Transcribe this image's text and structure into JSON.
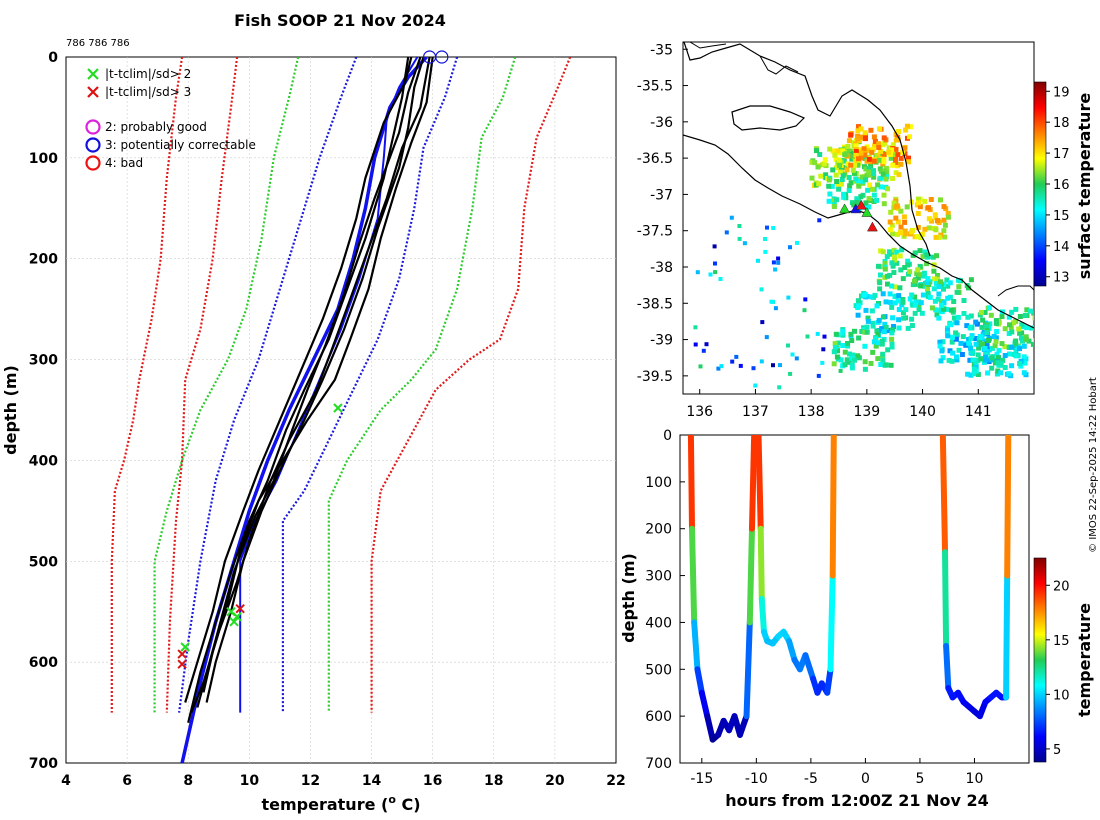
{
  "chart_data": [
    {
      "id": "profiles",
      "type": "line",
      "title": "Fish SOOP 21 Nov 2024",
      "subtitle": "786 786 786",
      "xlabel": "temperature (° C)",
      "xlabel_main": "temperature (",
      "xlabel_sup": "o",
      "xlabel_tail": " C)",
      "ylabel": "depth (m)",
      "xlim": [
        4,
        22
      ],
      "ylim": [
        0,
        700
      ],
      "xticks": [
        "4",
        "6",
        "8",
        "10",
        "12",
        "14",
        "16",
        "18",
        "20",
        "22"
      ],
      "yticks": [
        "0",
        "100",
        "200",
        "300",
        "400",
        "500",
        "600",
        "700"
      ],
      "legend": [
        {
          "marker": "x",
          "color": "#22dd22",
          "label": "|t-tclim|/sd> 2"
        },
        {
          "marker": "x",
          "color": "#dd1111",
          "label": "|t-tclim|/sd> 3"
        },
        {
          "marker": "o",
          "color": "#dd22dd",
          "label": "2: probably good"
        },
        {
          "marker": "o",
          "color": "#1111dd",
          "label": "3: potentially correctable"
        },
        {
          "marker": "o",
          "color": "#ee1111",
          "label": "4: bad"
        }
      ],
      "series": [
        {
          "name": "clim red left",
          "color": "#e01b1b",
          "style": "dotted",
          "x": [
            7.8,
            7.6,
            7.3,
            7.1,
            6.8,
            6.4,
            6.2,
            5.9,
            5.6,
            5.5,
            5.5
          ],
          "y": [
            0,
            40,
            120,
            200,
            260,
            320,
            360,
            400,
            430,
            500,
            650
          ]
        },
        {
          "name": "clim red left 2",
          "color": "#e01b1b",
          "style": "dotted",
          "x": [
            9.6,
            9.4,
            9.1,
            8.8,
            8.4,
            7.9,
            7.8,
            7.6,
            7.4,
            7.3
          ],
          "y": [
            0,
            50,
            120,
            200,
            270,
            320,
            400,
            460,
            560,
            650
          ]
        },
        {
          "name": "clim red right",
          "color": "#e01b1b",
          "style": "dotted",
          "x": [
            20.5,
            20.1,
            19.4,
            19.0,
            18.8,
            18.2,
            17.2,
            16.1,
            15.2,
            14.3,
            14.0,
            14.0
          ],
          "y": [
            0,
            30,
            80,
            150,
            230,
            280,
            300,
            330,
            380,
            430,
            500,
            650
          ]
        },
        {
          "name": "clim green left",
          "color": "#2ccc2c",
          "style": "dotted",
          "x": [
            11.6,
            11.3,
            10.8,
            10.4,
            9.9,
            9.3,
            8.4,
            7.8,
            7.3,
            6.9,
            6.9
          ],
          "y": [
            0,
            40,
            100,
            180,
            250,
            300,
            350,
            400,
            450,
            500,
            650
          ]
        },
        {
          "name": "clim green right",
          "color": "#2ccc2c",
          "style": "dotted",
          "x": [
            18.7,
            18.3,
            17.6,
            17.3,
            16.8,
            16.1,
            15.3,
            14.3,
            13.2,
            12.6,
            12.6
          ],
          "y": [
            0,
            40,
            80,
            150,
            230,
            290,
            320,
            350,
            400,
            440,
            650
          ]
        },
        {
          "name": "clim blue left",
          "color": "#1a1add",
          "style": "dotted",
          "x": [
            13.5,
            13.0,
            12.3,
            11.6,
            11.0,
            10.3,
            9.5,
            8.9,
            8.4,
            8.0,
            7.7
          ],
          "y": [
            0,
            40,
            100,
            170,
            230,
            300,
            360,
            420,
            500,
            580,
            650
          ]
        },
        {
          "name": "clim blue right",
          "color": "#1a1add",
          "style": "dotted",
          "x": [
            16.8,
            16.4,
            15.7,
            15.4,
            14.9,
            14.2,
            13.4,
            12.6,
            11.8,
            11.1,
            11.1
          ],
          "y": [
            0,
            40,
            90,
            150,
            220,
            280,
            330,
            380,
            430,
            460,
            650
          ]
        },
        {
          "name": "mean blue thick",
          "color": "#1111ee",
          "style": "solid",
          "width": 3.5,
          "x": [
            15.8,
            15.2,
            14.6,
            14.1,
            13.8,
            13.4,
            12.9,
            12.1,
            11.3,
            10.6,
            10.0,
            9.5,
            8.9,
            8.4,
            7.8
          ],
          "y": [
            0,
            20,
            50,
            100,
            150,
            200,
            250,
            300,
            350,
            400,
            450,
            500,
            560,
            620,
            700
          ]
        },
        {
          "name": "std blue line",
          "color": "#1111ee",
          "style": "solid",
          "width": 2.0,
          "x": [
            15.5,
            14.9,
            14.5,
            14.4,
            14.2,
            13.6,
            13.0,
            12.3,
            11.6,
            10.9,
            10.2,
            9.7,
            9.7,
            9.7
          ],
          "y": [
            0,
            30,
            60,
            100,
            160,
            220,
            270,
            320,
            370,
            420,
            460,
            500,
            600,
            650
          ]
        },
        {
          "name": "profile 1",
          "color": "#000000",
          "style": "solid",
          "width": 2.2,
          "x": [
            15.2,
            15.0,
            14.7,
            14.4,
            13.8,
            13.2,
            12.6,
            11.8,
            11.2,
            10.6,
            10.0,
            9.4,
            8.9,
            8.4,
            8.0
          ],
          "y": [
            0,
            40,
            80,
            120,
            180,
            230,
            280,
            330,
            370,
            420,
            460,
            510,
            560,
            610,
            660
          ]
        },
        {
          "name": "profile 2",
          "color": "#000000",
          "style": "solid",
          "width": 2.2,
          "x": [
            15.7,
            15.4,
            15.2,
            14.9,
            14.2,
            13.7,
            13.1,
            12.4,
            11.8,
            11.0,
            10.4,
            9.8,
            9.4,
            8.9,
            8.6
          ],
          "y": [
            0,
            30,
            70,
            110,
            170,
            220,
            270,
            320,
            360,
            410,
            450,
            500,
            550,
            600,
            640
          ]
        },
        {
          "name": "profile 3",
          "color": "#000000",
          "style": "solid",
          "width": 2.2,
          "x": [
            15.9,
            15.6,
            15.0,
            14.5,
            13.9,
            13.3,
            12.7,
            12.2,
            11.3,
            10.7,
            10.1,
            9.6,
            9.0,
            8.5,
            8.1
          ],
          "y": [
            0,
            50,
            90,
            140,
            190,
            240,
            290,
            330,
            380,
            420,
            470,
            520,
            570,
            620,
            650
          ]
        },
        {
          "name": "profile 4",
          "color": "#000000",
          "style": "solid",
          "width": 2.2,
          "x": [
            15.3,
            15.1,
            14.4,
            13.8,
            13.5,
            13.0,
            12.4,
            11.7,
            11.0,
            10.3,
            9.8,
            9.2,
            8.8,
            8.3,
            7.9
          ],
          "y": [
            0,
            25,
            65,
            120,
            160,
            210,
            260,
            310,
            360,
            410,
            450,
            500,
            550,
            600,
            640
          ]
        },
        {
          "name": "profile 5",
          "color": "#000000",
          "style": "solid",
          "width": 2.2,
          "x": [
            16.0,
            15.8,
            15.3,
            14.8,
            14.3,
            13.9,
            13.3,
            12.8,
            11.9,
            11.1,
            10.3,
            9.7,
            9.3,
            8.8,
            8.5
          ],
          "y": [
            0,
            45,
            85,
            130,
            180,
            230,
            280,
            320,
            360,
            400,
            440,
            490,
            540,
            590,
            630
          ]
        },
        {
          "name": "profile 6",
          "color": "#000000",
          "style": "solid",
          "width": 2.2,
          "x": [
            15.6,
            15.2,
            14.9,
            14.1,
            13.6,
            13.1,
            12.5,
            11.9,
            11.4,
            10.8,
            10.2,
            9.5,
            9.1,
            8.7,
            8.3
          ],
          "y": [
            0,
            35,
            75,
            140,
            185,
            235,
            285,
            330,
            370,
            420,
            455,
            510,
            555,
            600,
            645
          ]
        }
      ],
      "flags": [
        {
          "marker": "x",
          "color": "#22dd22",
          "x": 9.4,
          "y": 550
        },
        {
          "marker": "x",
          "color": "#22dd22",
          "x": 9.6,
          "y": 555
        },
        {
          "marker": "x",
          "color": "#22dd22",
          "x": 9.5,
          "y": 560
        },
        {
          "marker": "x",
          "color": "#22dd22",
          "x": 7.9,
          "y": 585
        },
        {
          "marker": "x",
          "color": "#22dd22",
          "x": 12.9,
          "y": 348
        },
        {
          "marker": "x",
          "color": "#dd1111",
          "x": 9.7,
          "y": 547
        },
        {
          "marker": "x",
          "color": "#dd1111",
          "x": 7.8,
          "y": 592
        },
        {
          "marker": "x",
          "color": "#dd1111",
          "x": 7.8,
          "y": 602
        }
      ],
      "qc_circles": [
        {
          "color": "#1111dd",
          "x": 15.9,
          "y": 0
        },
        {
          "color": "#1111dd",
          "x": 16.3,
          "y": 0
        }
      ]
    },
    {
      "id": "map",
      "type": "heatmap",
      "xticks": [
        "136",
        "137",
        "138",
        "139",
        "140",
        "141"
      ],
      "yticks": [
        "-35",
        "-35.5",
        "-36",
        "-36.5",
        "-37",
        "-37.5",
        "-38",
        "-38.5",
        "-39",
        "-39.5"
      ],
      "xlim": [
        135.7,
        142.0
      ],
      "ylim": [
        -39.75,
        -34.9
      ],
      "colorbar_label": "surface temperature",
      "colorbar_ticks": [
        "13",
        "14",
        "15",
        "16",
        "17",
        "18",
        "19"
      ],
      "colorbar_range": [
        12.7,
        19.3
      ],
      "sst_patches": [
        {
          "lon": 138.5,
          "lat": -36.6,
          "v": 16.4
        },
        {
          "lon": 139.0,
          "lat": -36.5,
          "v": 16.8
        },
        {
          "lon": 139.2,
          "lat": -36.3,
          "v": 17.5
        },
        {
          "lon": 138.8,
          "lat": -36.9,
          "v": 15.8
        },
        {
          "lon": 139.9,
          "lat": -37.3,
          "v": 17.0
        },
        {
          "lon": 139.7,
          "lat": -38.0,
          "v": 16.0
        },
        {
          "lon": 140.3,
          "lat": -38.4,
          "v": 15.6
        },
        {
          "lon": 139.3,
          "lat": -38.6,
          "v": 15.2
        },
        {
          "lon": 140.8,
          "lat": -39.0,
          "v": 15.0
        },
        {
          "lon": 141.5,
          "lat": -38.8,
          "v": 15.9
        },
        {
          "lon": 141.3,
          "lat": -39.2,
          "v": 15.3
        },
        {
          "lon": 138.9,
          "lat": -39.1,
          "v": 15.7
        }
      ],
      "ship_track": [
        {
          "lon": 138.6,
          "lat": -37.2,
          "mark": "green"
        },
        {
          "lon": 138.8,
          "lat": -37.2,
          "mark": "blue"
        },
        {
          "lon": 138.9,
          "lat": -37.15,
          "mark": "red"
        },
        {
          "lon": 139.0,
          "lat": -37.25,
          "mark": "green"
        },
        {
          "lon": 139.1,
          "lat": -37.45,
          "mark": "red"
        }
      ]
    },
    {
      "id": "section",
      "type": "line",
      "xlabel": "hours from 12:00Z 21 Nov 24",
      "ylabel": "depth (m)",
      "xlim": [
        -17,
        15
      ],
      "ylim": [
        0,
        700
      ],
      "xticks": [
        "-15",
        "-10",
        "-5",
        "0",
        "5",
        "10"
      ],
      "yticks": [
        "0",
        "100",
        "200",
        "300",
        "400",
        "500",
        "600",
        "700"
      ],
      "colorbar_label": "temperature",
      "colorbar_ticks": [
        "5",
        "10",
        "15",
        "20"
      ],
      "colorbar_range": [
        3.8,
        22.5
      ],
      "casts": [
        {
          "x": [
            -16.0,
            -15.9,
            -15.7,
            -15.4,
            -15.0,
            -14.5,
            -14.0,
            -13.5,
            -13.0,
            -12.5,
            -12.0,
            -11.5,
            -10.9,
            -10.6,
            -10.4,
            -10.2
          ],
          "y": [
            0,
            200,
            400,
            500,
            550,
            600,
            650,
            640,
            610,
            630,
            600,
            640,
            600,
            400,
            200,
            0
          ]
        },
        {
          "x": [
            -9.8,
            -9.6,
            -9.5,
            -9.3,
            -9.0,
            -8.5,
            -8.0,
            -7.5,
            -7.0,
            -6.5,
            -6.0,
            -5.5,
            -4.8,
            -4.4,
            -4.0,
            -3.5,
            -3.2,
            -3.0,
            -2.9
          ],
          "y": [
            0,
            200,
            350,
            420,
            440,
            445,
            430,
            420,
            440,
            480,
            500,
            470,
            520,
            550,
            530,
            550,
            500,
            300,
            0
          ]
        },
        {
          "x": [
            7.1,
            7.3,
            7.4,
            7.6,
            8.0,
            8.5,
            9.0,
            9.5,
            10.0,
            10.5,
            11.0,
            11.5,
            12.0,
            12.5,
            12.9,
            13.0,
            13.1
          ],
          "y": [
            0,
            250,
            450,
            540,
            560,
            550,
            570,
            580,
            590,
            600,
            570,
            560,
            550,
            560,
            560,
            300,
            0
          ]
        }
      ]
    }
  ],
  "side_stamp": "© IMOS 22-Sep-2025 14:22 Hobart"
}
